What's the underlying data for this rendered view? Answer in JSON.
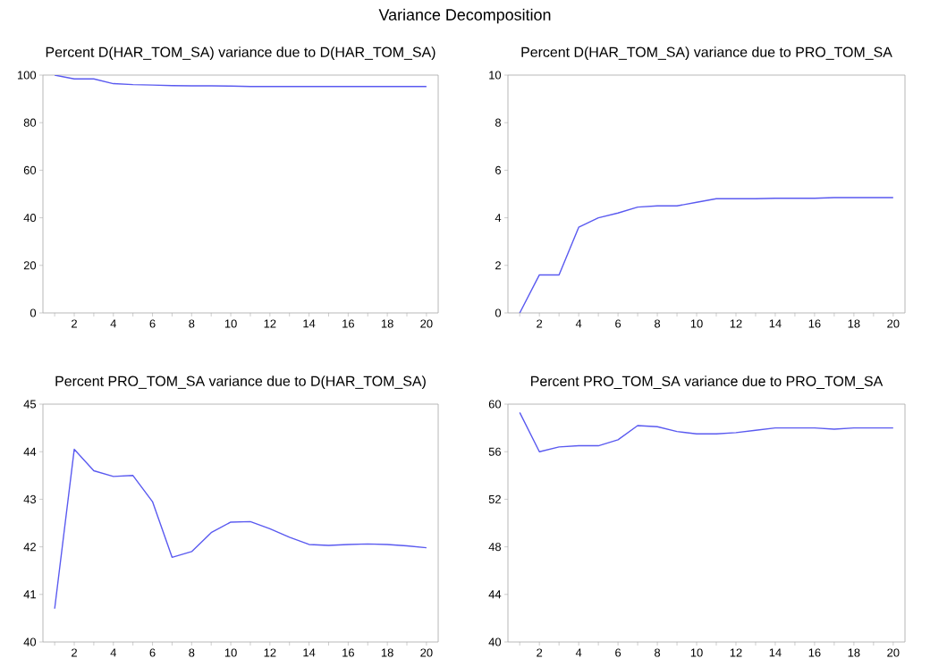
{
  "chart_data": [
    {
      "type": "line",
      "title": "Percent D(HAR_TOM_SA) variance due to D(HAR_TOM_SA)",
      "annotations": [
        "Variance Decomposition"
      ],
      "x": [
        1,
        2,
        3,
        4,
        5,
        6,
        7,
        8,
        9,
        10,
        11,
        12,
        13,
        14,
        15,
        16,
        17,
        18,
        19,
        20
      ],
      "series": [
        {
          "color": "#5a5af0",
          "values": [
            100,
            98.4,
            98.4,
            96.4,
            96.0,
            95.8,
            95.6,
            95.5,
            95.5,
            95.4,
            95.2,
            95.2,
            95.2,
            95.2,
            95.2,
            95.2,
            95.2,
            95.2,
            95.2,
            95.2
          ]
        }
      ],
      "xlim": [
        0.4,
        20.6
      ],
      "ylim": [
        0,
        100
      ],
      "xticks": [
        {
          "value": 1,
          "label": null
        },
        2,
        {
          "value": 3,
          "label": null
        },
        4,
        {
          "value": 5,
          "label": null
        },
        6,
        {
          "value": 7,
          "label": null
        },
        8,
        {
          "value": 9,
          "label": null
        },
        10,
        {
          "value": 11,
          "label": null
        },
        12,
        {
          "value": 13,
          "label": null
        },
        14,
        {
          "value": 15,
          "label": null
        },
        16,
        {
          "value": 17,
          "label": null
        },
        18,
        {
          "value": 19,
          "label": null
        },
        20
      ],
      "yticks": [
        0,
        20,
        40,
        60,
        80,
        100
      ]
    },
    {
      "type": "line",
      "title": "Percent D(HAR_TOM_SA) variance due to PRO_TOM_SA",
      "x": [
        1,
        2,
        3,
        4,
        5,
        6,
        7,
        8,
        9,
        10,
        11,
        12,
        13,
        14,
        15,
        16,
        17,
        18,
        19,
        20
      ],
      "series": [
        {
          "color": "#5a5af0",
          "values": [
            0,
            1.6,
            1.6,
            3.6,
            4.0,
            4.2,
            4.45,
            4.5,
            4.5,
            4.65,
            4.8,
            4.8,
            4.8,
            4.82,
            4.82,
            4.82,
            4.85,
            4.85,
            4.85,
            4.85
          ]
        }
      ],
      "xlim": [
        0.4,
        20.6
      ],
      "ylim": [
        0,
        10
      ],
      "xticks": [
        {
          "value": 1,
          "label": null
        },
        2,
        {
          "value": 3,
          "label": null
        },
        4,
        {
          "value": 5,
          "label": null
        },
        6,
        {
          "value": 7,
          "label": null
        },
        8,
        {
          "value": 9,
          "label": null
        },
        10,
        {
          "value": 11,
          "label": null
        },
        12,
        {
          "value": 13,
          "label": null
        },
        14,
        {
          "value": 15,
          "label": null
        },
        16,
        {
          "value": 17,
          "label": null
        },
        18,
        {
          "value": 19,
          "label": null
        },
        20
      ],
      "yticks": [
        0,
        2,
        4,
        6,
        8,
        10
      ]
    },
    {
      "type": "line",
      "title": "Percent PRO_TOM_SA variance due to D(HAR_TOM_SA)",
      "x": [
        1,
        2,
        3,
        4,
        5,
        6,
        7,
        8,
        9,
        10,
        11,
        12,
        13,
        14,
        15,
        16,
        17,
        18,
        19,
        20
      ],
      "series": [
        {
          "color": "#5a5af0",
          "values": [
            40.7,
            44.05,
            43.6,
            43.48,
            43.5,
            42.95,
            41.78,
            41.9,
            42.3,
            42.52,
            42.53,
            42.38,
            42.2,
            42.05,
            42.03,
            42.05,
            42.06,
            42.05,
            42.02,
            41.98
          ]
        }
      ],
      "xlim": [
        0.4,
        20.6
      ],
      "ylim": [
        40,
        45
      ],
      "xticks": [
        {
          "value": 1,
          "label": null
        },
        2,
        {
          "value": 3,
          "label": null
        },
        4,
        {
          "value": 5,
          "label": null
        },
        6,
        {
          "value": 7,
          "label": null
        },
        8,
        {
          "value": 9,
          "label": null
        },
        10,
        {
          "value": 11,
          "label": null
        },
        12,
        {
          "value": 13,
          "label": null
        },
        14,
        {
          "value": 15,
          "label": null
        },
        16,
        {
          "value": 17,
          "label": null
        },
        18,
        {
          "value": 19,
          "label": null
        },
        20
      ],
      "yticks": [
        40,
        41,
        42,
        43,
        44,
        45
      ]
    },
    {
      "type": "line",
      "title": "Percent PRO_TOM_SA variance due to PRO_TOM_SA",
      "x": [
        1,
        2,
        3,
        4,
        5,
        6,
        7,
        8,
        9,
        10,
        11,
        12,
        13,
        14,
        15,
        16,
        17,
        18,
        19,
        20
      ],
      "series": [
        {
          "color": "#5a5af0",
          "values": [
            59.3,
            56.0,
            56.4,
            56.5,
            56.5,
            57.0,
            58.2,
            58.1,
            57.7,
            57.5,
            57.5,
            57.6,
            57.8,
            58.0,
            58.0,
            58.0,
            57.9,
            58.0,
            58.0,
            58.0
          ]
        }
      ],
      "xlim": [
        0.4,
        20.6
      ],
      "ylim": [
        40,
        60
      ],
      "xticks": [
        {
          "value": 1,
          "label": null
        },
        2,
        {
          "value": 3,
          "label": null
        },
        4,
        {
          "value": 5,
          "label": null
        },
        6,
        {
          "value": 7,
          "label": null
        },
        8,
        {
          "value": 9,
          "label": null
        },
        10,
        {
          "value": 11,
          "label": null
        },
        12,
        {
          "value": 13,
          "label": null
        },
        14,
        {
          "value": 15,
          "label": null
        },
        16,
        {
          "value": 17,
          "label": null
        },
        18,
        {
          "value": 19,
          "label": null
        },
        20
      ],
      "yticks": [
        40,
        44,
        48,
        52,
        56,
        60
      ]
    }
  ]
}
